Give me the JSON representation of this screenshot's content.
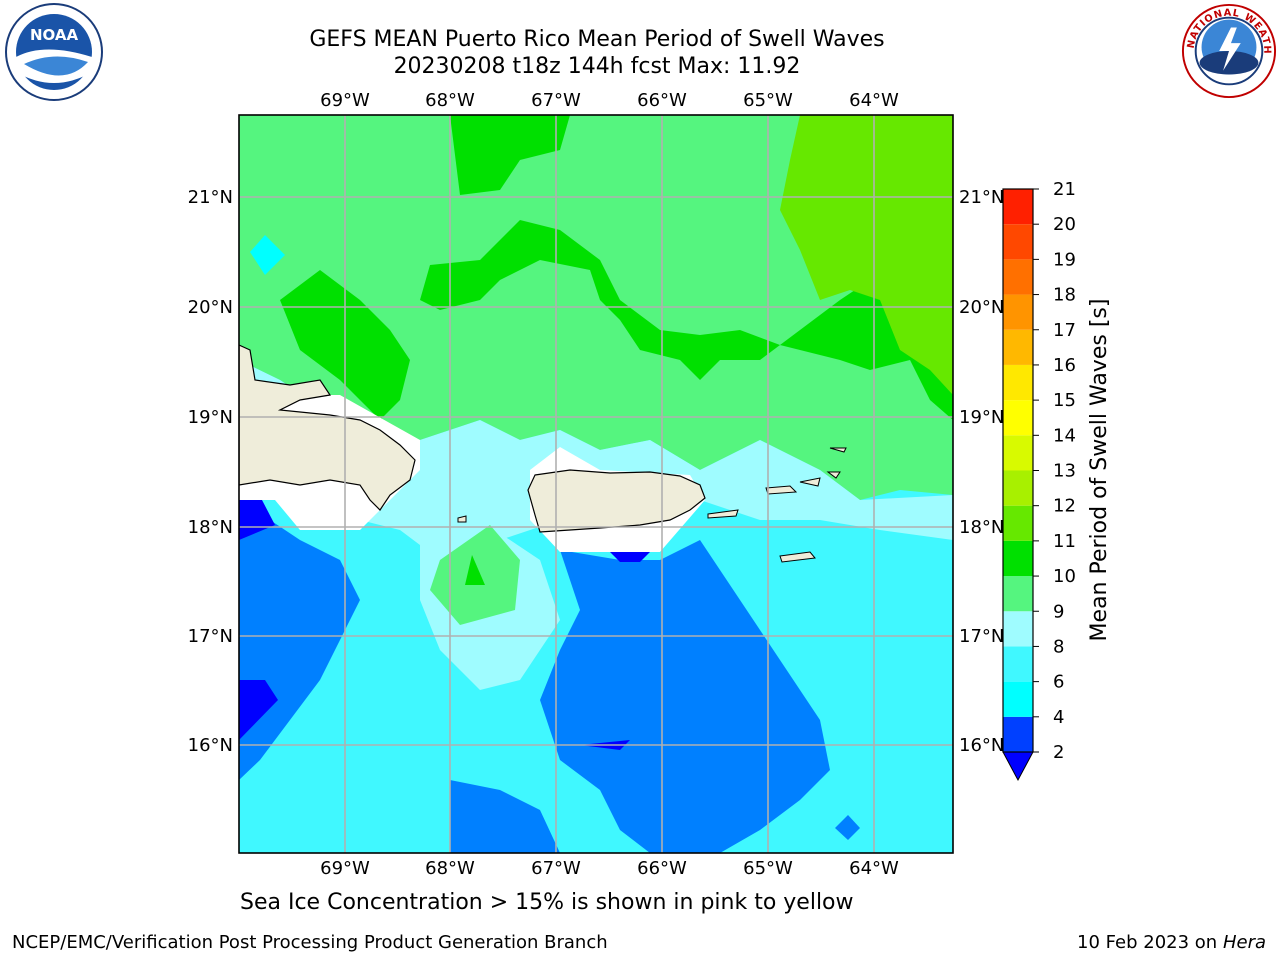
{
  "title": {
    "line1": "GEFS MEAN Puerto Rico Mean Period of Swell Waves",
    "line2": "20230208 t18z 144h fcst   Max: 11.92"
  },
  "map": {
    "lon_ticks": [
      "69°W",
      "68°W",
      "67°W",
      "66°W",
      "65°W",
      "64°W"
    ],
    "lat_ticks": [
      "21°N",
      "20°N",
      "19°N",
      "18°N",
      "17°N",
      "16°N"
    ],
    "land_color": "#efedda",
    "grid_color": "#b0b0b0"
  },
  "colorbar": {
    "label": "Mean Period of Swell Waves [s]",
    "ticks": [
      "2",
      "4",
      "6",
      "8",
      "9",
      "10",
      "11",
      "12",
      "13",
      "14",
      "15",
      "16",
      "17",
      "18",
      "19",
      "20",
      "21"
    ],
    "colors": [
      "#0040ff",
      "#00ffff",
      "#40f8ff",
      "#9ffcff",
      "#55f57f",
      "#00e000",
      "#66e800",
      "#a8f000",
      "#d8fa00",
      "#ffff00",
      "#ffe800",
      "#ffb800",
      "#ff9400",
      "#ff7000",
      "#ff4800",
      "#ff2000",
      "#ff0000"
    ],
    "extend_color": "#0000ff"
  },
  "note": "Sea Ice Concentration > 15% is shown in pink to yellow",
  "footer": {
    "left": "NCEP/EMC/Verification Post Processing Product Generation Branch",
    "right_date": "10 Feb 2023 on",
    "right_machine": "Hera"
  },
  "logos": {
    "noaa_text": "NOAA",
    "nws_text": "NATIONAL WEATHER SERVICE"
  }
}
